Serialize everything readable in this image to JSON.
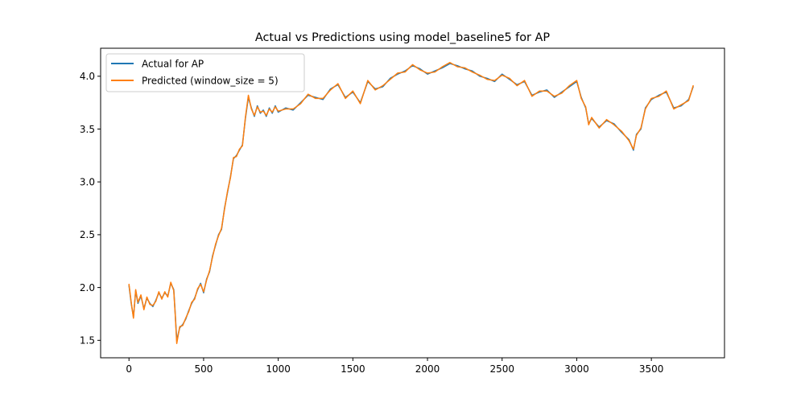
{
  "chart_data": {
    "type": "line",
    "title": "Actual vs Predictions using model_baseline5 for AP",
    "xlabel": "",
    "ylabel": "",
    "xlim": [
      -190,
      3990
    ],
    "ylim": [
      1.335,
      4.265
    ],
    "xticks": [
      0,
      500,
      1000,
      1500,
      2000,
      2500,
      3000,
      3500
    ],
    "xtick_labels": [
      "0",
      "500",
      "1000",
      "1500",
      "2000",
      "2500",
      "3000",
      "3500"
    ],
    "yticks": [
      1.5,
      2.0,
      2.5,
      3.0,
      3.5,
      4.0
    ],
    "ytick_labels": [
      "1.5",
      "2.0",
      "2.5",
      "3.0",
      "3.5",
      "4.0"
    ],
    "grid": false,
    "legend_position": "top-left",
    "series": [
      {
        "name": "Actual for AP",
        "color": "#1f77b4",
        "x": [
          0,
          15,
          30,
          45,
          60,
          80,
          100,
          120,
          140,
          160,
          180,
          200,
          220,
          240,
          260,
          280,
          300,
          310,
          320,
          340,
          360,
          380,
          400,
          420,
          440,
          460,
          480,
          500,
          520,
          540,
          560,
          580,
          600,
          620,
          640,
          660,
          680,
          700,
          720,
          740,
          760,
          780,
          800,
          820,
          840,
          860,
          880,
          900,
          920,
          940,
          960,
          980,
          1000,
          1050,
          1100,
          1150,
          1200,
          1250,
          1300,
          1350,
          1400,
          1450,
          1500,
          1550,
          1600,
          1650,
          1700,
          1750,
          1800,
          1850,
          1900,
          1950,
          2000,
          2050,
          2100,
          2150,
          2200,
          2250,
          2300,
          2350,
          2400,
          2450,
          2500,
          2550,
          2600,
          2650,
          2700,
          2750,
          2800,
          2850,
          2900,
          2950,
          3000,
          3030,
          3060,
          3080,
          3100,
          3150,
          3200,
          3250,
          3300,
          3350,
          3380,
          3400,
          3430,
          3460,
          3500,
          3550,
          3600,
          3650,
          3700,
          3750,
          3780
        ],
        "y": [
          2.02,
          1.85,
          1.72,
          1.97,
          1.85,
          1.92,
          1.8,
          1.9,
          1.85,
          1.82,
          1.88,
          1.95,
          1.9,
          1.95,
          1.92,
          2.04,
          1.98,
          1.75,
          1.5,
          1.62,
          1.65,
          1.7,
          1.78,
          1.85,
          1.9,
          1.98,
          2.04,
          1.95,
          2.08,
          2.15,
          2.3,
          2.4,
          2.5,
          2.55,
          2.75,
          2.9,
          3.05,
          3.22,
          3.25,
          3.3,
          3.35,
          3.6,
          3.8,
          3.7,
          3.62,
          3.72,
          3.65,
          3.68,
          3.62,
          3.7,
          3.65,
          3.72,
          3.66,
          3.7,
          3.68,
          3.75,
          3.82,
          3.8,
          3.78,
          3.88,
          3.92,
          3.8,
          3.85,
          3.75,
          3.95,
          3.88,
          3.9,
          3.98,
          4.02,
          4.05,
          4.1,
          4.07,
          4.02,
          4.05,
          4.08,
          4.12,
          4.1,
          4.07,
          4.05,
          4.0,
          3.98,
          3.95,
          4.02,
          3.97,
          3.92,
          3.95,
          3.82,
          3.85,
          3.87,
          3.8,
          3.85,
          3.9,
          3.95,
          3.8,
          3.7,
          3.55,
          3.6,
          3.52,
          3.58,
          3.55,
          3.47,
          3.4,
          3.3,
          3.45,
          3.5,
          3.7,
          3.78,
          3.82,
          3.85,
          3.7,
          3.72,
          3.78,
          3.9
        ]
      },
      {
        "name": "Predicted (window_size = 5)",
        "color": "#ff7f0e",
        "x": [
          0,
          15,
          30,
          45,
          60,
          80,
          100,
          120,
          140,
          160,
          180,
          200,
          220,
          240,
          260,
          280,
          300,
          310,
          320,
          340,
          360,
          380,
          400,
          420,
          440,
          460,
          480,
          500,
          520,
          540,
          560,
          580,
          600,
          620,
          640,
          660,
          680,
          700,
          720,
          740,
          760,
          780,
          800,
          820,
          840,
          860,
          880,
          900,
          920,
          940,
          960,
          980,
          1000,
          1050,
          1100,
          1150,
          1200,
          1250,
          1300,
          1350,
          1400,
          1450,
          1500,
          1550,
          1600,
          1650,
          1700,
          1750,
          1800,
          1850,
          1900,
          1950,
          2000,
          2050,
          2100,
          2150,
          2200,
          2250,
          2300,
          2350,
          2400,
          2450,
          2500,
          2550,
          2600,
          2650,
          2700,
          2750,
          2800,
          2850,
          2900,
          2950,
          3000,
          3030,
          3060,
          3080,
          3100,
          3150,
          3200,
          3250,
          3300,
          3350,
          3380,
          3400,
          3430,
          3460,
          3500,
          3550,
          3600,
          3650,
          3700,
          3750,
          3780
        ],
        "y": [
          2.03,
          1.86,
          1.71,
          1.98,
          1.86,
          1.93,
          1.79,
          1.91,
          1.84,
          1.83,
          1.87,
          1.96,
          1.89,
          1.96,
          1.91,
          2.05,
          1.97,
          1.74,
          1.47,
          1.63,
          1.64,
          1.71,
          1.77,
          1.86,
          1.89,
          1.99,
          2.03,
          1.96,
          2.07,
          2.16,
          2.29,
          2.41,
          2.49,
          2.56,
          2.74,
          2.91,
          3.04,
          3.23,
          3.24,
          3.31,
          3.34,
          3.61,
          3.82,
          3.69,
          3.63,
          3.71,
          3.66,
          3.67,
          3.63,
          3.69,
          3.66,
          3.71,
          3.67,
          3.69,
          3.69,
          3.74,
          3.83,
          3.79,
          3.79,
          3.87,
          3.93,
          3.79,
          3.86,
          3.74,
          3.96,
          3.87,
          3.91,
          3.97,
          4.03,
          4.04,
          4.11,
          4.06,
          4.03,
          4.04,
          4.09,
          4.13,
          4.09,
          4.08,
          4.04,
          4.01,
          3.97,
          3.96,
          4.01,
          3.98,
          3.91,
          3.96,
          3.81,
          3.86,
          3.86,
          3.81,
          3.84,
          3.91,
          3.96,
          3.79,
          3.71,
          3.54,
          3.61,
          3.51,
          3.59,
          3.54,
          3.48,
          3.39,
          3.31,
          3.44,
          3.51,
          3.69,
          3.79,
          3.81,
          3.86,
          3.69,
          3.73,
          3.77,
          3.91
        ]
      }
    ]
  }
}
